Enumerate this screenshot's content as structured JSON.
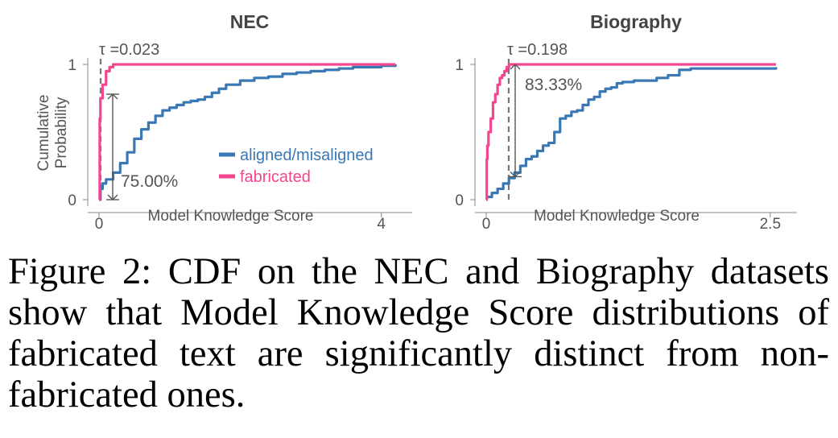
{
  "caption": "Figure 2:  CDF on the NEC and Biography datasets show that Model Knowledge Score distributions of fabricated text are significantly distinct from non-fabricated ones.",
  "colors": {
    "aligned": "#3a78b5",
    "fabricated": "#f2468f",
    "axis": "#888888",
    "text": "#555555"
  },
  "chart_data": [
    {
      "type": "line",
      "title": "NEC",
      "xlabel": "Model Knowledge Score",
      "ylabel": "Cumulative\nProbability",
      "xlim": [
        0,
        4.3
      ],
      "ylim": [
        0,
        1
      ],
      "xticks": [
        {
          "v": 0,
          "label": "0"
        },
        {
          "v": 4,
          "label": "4"
        }
      ],
      "yticks": [
        {
          "v": 0,
          "label": "0"
        },
        {
          "v": 1,
          "label": "1"
        }
      ],
      "tau_label": "τ =0.023",
      "tau": 0.023,
      "gap_label": "75.00%",
      "gap_y": [
        0.0,
        0.78
      ],
      "legend": [
        "aligned/misaligned",
        "fabricated"
      ],
      "series": [
        {
          "name": "aligned/misaligned",
          "color": "aligned",
          "x": [
            0,
            0.02,
            0.05,
            0.1,
            0.2,
            0.3,
            0.4,
            0.5,
            0.6,
            0.7,
            0.8,
            0.9,
            1.0,
            1.1,
            1.2,
            1.3,
            1.4,
            1.5,
            1.6,
            1.7,
            1.8,
            2.0,
            2.2,
            2.4,
            2.6,
            2.8,
            3.0,
            3.2,
            3.4,
            3.6,
            3.8,
            4.0,
            4.2
          ],
          "y": [
            0,
            0.08,
            0.12,
            0.15,
            0.2,
            0.27,
            0.35,
            0.45,
            0.52,
            0.57,
            0.62,
            0.66,
            0.68,
            0.7,
            0.72,
            0.73,
            0.74,
            0.76,
            0.79,
            0.82,
            0.85,
            0.88,
            0.9,
            0.91,
            0.93,
            0.94,
            0.95,
            0.96,
            0.97,
            0.98,
            0.98,
            0.99,
            1.0
          ]
        },
        {
          "name": "fabricated",
          "color": "fabricated",
          "x": [
            0,
            0.01,
            0.02,
            0.05,
            0.1,
            0.15,
            0.2,
            0.3,
            4.2
          ],
          "y": [
            0,
            0.6,
            0.75,
            0.85,
            0.95,
            0.98,
            1.0,
            1.0,
            1.0
          ]
        }
      ]
    },
    {
      "type": "line",
      "title": "Biography",
      "xlabel": "Model Knowledge Score",
      "ylabel": "",
      "xlim": [
        0,
        2.65
      ],
      "ylim": [
        0,
        1
      ],
      "xticks": [
        {
          "v": 0,
          "label": "0"
        },
        {
          "v": 2.5,
          "label": "2.5"
        }
      ],
      "yticks": [
        {
          "v": 0,
          "label": "0"
        },
        {
          "v": 1,
          "label": "1"
        }
      ],
      "tau_label": "τ =0.198",
      "tau": 0.198,
      "gap_label": "83.33%",
      "gap_y": [
        0.17,
        1.0
      ],
      "series": [
        {
          "name": "aligned/misaligned",
          "color": "aligned",
          "x": [
            0,
            0.05,
            0.1,
            0.15,
            0.2,
            0.25,
            0.3,
            0.35,
            0.4,
            0.45,
            0.5,
            0.55,
            0.6,
            0.65,
            0.7,
            0.75,
            0.8,
            0.85,
            0.9,
            0.95,
            1.0,
            1.05,
            1.1,
            1.15,
            1.2,
            1.25,
            1.3,
            1.4,
            1.5,
            1.6,
            1.7,
            1.8,
            1.9,
            2.0,
            2.2,
            2.4,
            2.55
          ],
          "y": [
            0.02,
            0.05,
            0.08,
            0.12,
            0.16,
            0.2,
            0.25,
            0.3,
            0.32,
            0.36,
            0.4,
            0.42,
            0.5,
            0.6,
            0.62,
            0.65,
            0.66,
            0.7,
            0.74,
            0.76,
            0.8,
            0.82,
            0.83,
            0.86,
            0.87,
            0.87,
            0.88,
            0.88,
            0.9,
            0.92,
            0.96,
            0.97,
            0.97,
            0.97,
            0.97,
            0.97,
            0.98
          ]
        },
        {
          "name": "fabricated",
          "color": "fabricated",
          "x": [
            0,
            0.005,
            0.01,
            0.02,
            0.04,
            0.06,
            0.08,
            0.1,
            0.12,
            0.14,
            0.16,
            0.18,
            0.2,
            2.55
          ],
          "y": [
            0,
            0.3,
            0.4,
            0.5,
            0.6,
            0.72,
            0.78,
            0.85,
            0.9,
            0.92,
            0.95,
            0.98,
            1.0,
            1.0
          ]
        }
      ]
    }
  ]
}
